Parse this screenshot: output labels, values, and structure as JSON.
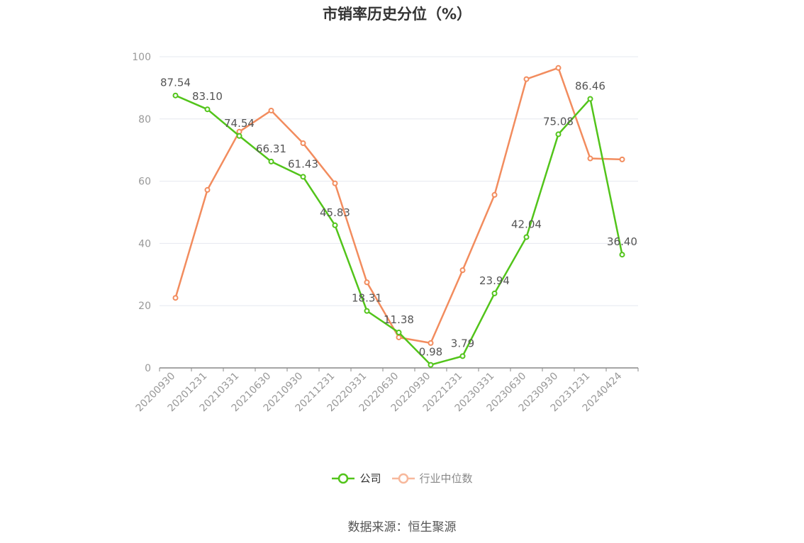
{
  "chart_data": {
    "type": "line",
    "title": "市销率历史分位（%）",
    "categories": [
      "20200930",
      "20201231",
      "20210331",
      "20210630",
      "20210930",
      "20211231",
      "20220331",
      "20220630",
      "20220930",
      "20221231",
      "20230331",
      "20230630",
      "20230930",
      "20231231",
      "20240424"
    ],
    "ylim": [
      0,
      100
    ],
    "yticks": [
      0,
      20,
      40,
      60,
      80,
      100
    ],
    "grid": true,
    "legend_position": "bottom",
    "series": [
      {
        "name": "公司",
        "color": "#52c41a",
        "values": [
          87.54,
          83.1,
          74.54,
          66.31,
          61.43,
          45.83,
          18.31,
          11.38,
          0.98,
          3.79,
          23.94,
          42.04,
          75.08,
          86.46,
          36.4
        ],
        "labels": [
          "87.54",
          "83.10",
          "74.54",
          "66.31",
          "61.43",
          "45.83",
          "18.31",
          "11.38",
          "0.98",
          "3.79",
          "23.94",
          "42.04",
          "75.08",
          "86.46",
          "36.40"
        ]
      },
      {
        "name": "行业中位数",
        "color": "#f28c5e",
        "values": [
          22.5,
          57.2,
          75.9,
          82.7,
          72.2,
          59.3,
          27.5,
          9.8,
          8.0,
          31.4,
          55.6,
          92.8,
          96.4,
          67.3,
          67.0
        ]
      }
    ]
  },
  "legend": {
    "company": "公司",
    "industry": "行业中位数"
  },
  "source": "数据来源：恒生聚源"
}
